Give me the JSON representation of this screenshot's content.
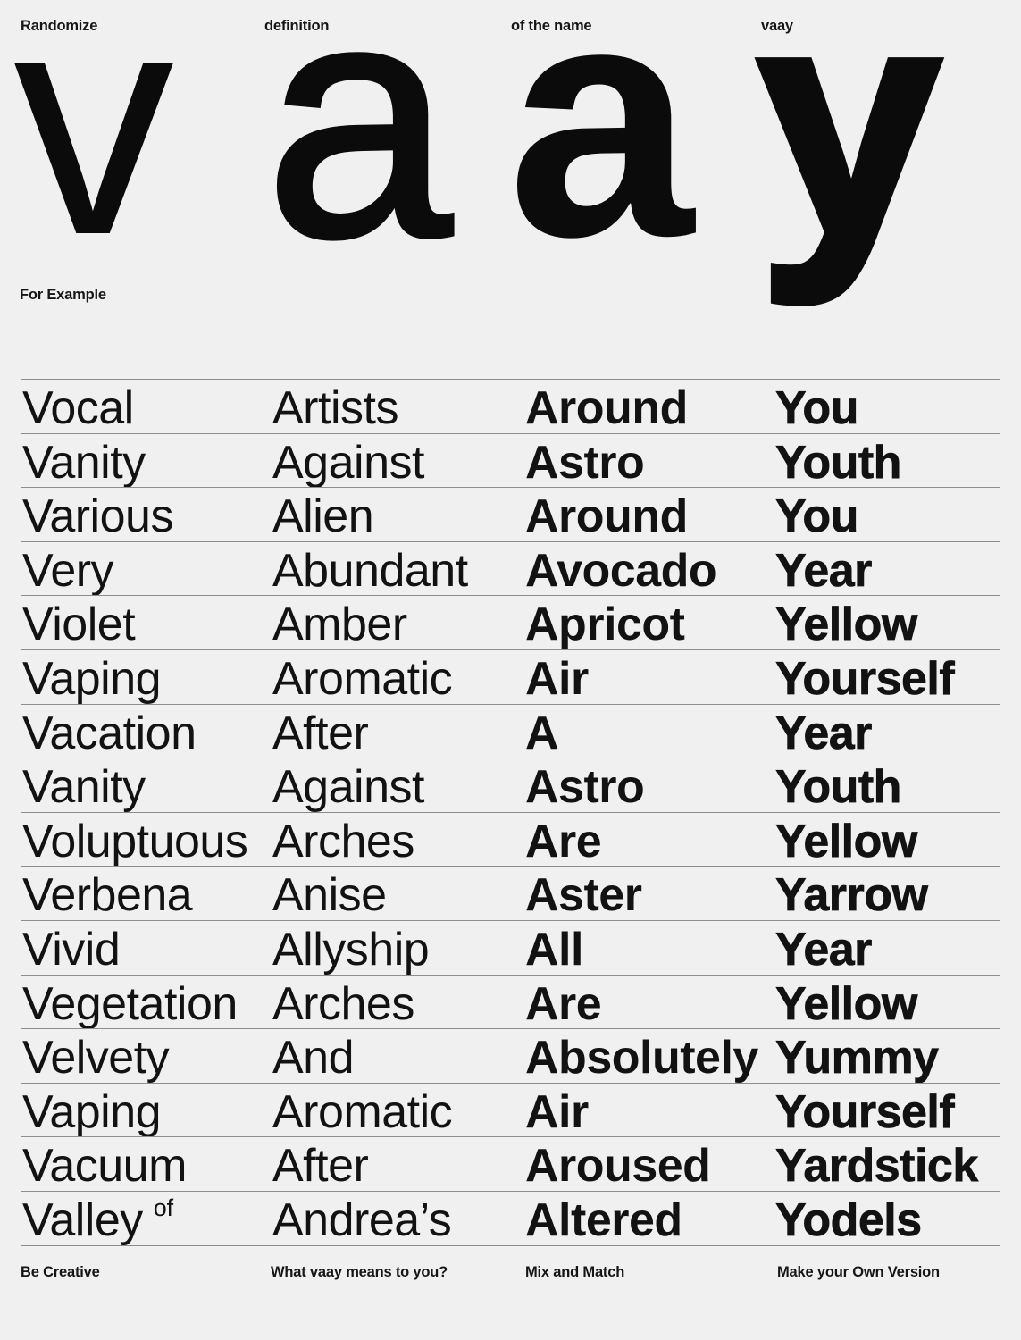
{
  "page": {
    "background_color": "#f0f0f1",
    "text_color": "#131313",
    "divider_color": "#8d8d8d"
  },
  "header": {
    "labels": [
      "Randomize",
      "definition",
      "of the name",
      "vaay"
    ]
  },
  "display": {
    "letters": [
      {
        "char": "v",
        "weight": "light"
      },
      {
        "char": "a",
        "weight": "regular"
      },
      {
        "char": "a",
        "weight": "bold"
      },
      {
        "char": "y",
        "weight": "black"
      }
    ]
  },
  "section_label": "For Example",
  "table": {
    "rows": [
      [
        "Vocal",
        "Artists",
        "Around",
        "You"
      ],
      [
        "Vanity",
        "Against",
        "Astro",
        "Youth"
      ],
      [
        "Various",
        "Alien",
        "Around",
        "You"
      ],
      [
        "Very",
        "Abundant",
        "Avocado",
        "Year"
      ],
      [
        "Violet",
        "Amber",
        "Apricot",
        "Yellow"
      ],
      [
        "Vaping",
        "Aromatic",
        "Air",
        "Yourself"
      ],
      [
        "Vacation",
        "After",
        "A",
        "Year"
      ],
      [
        "Vanity",
        "Against",
        "Astro",
        "Youth"
      ],
      [
        "Voluptuous",
        "Arches",
        "Are",
        "Yellow"
      ],
      [
        "Verbena",
        "Anise",
        "Aster",
        "Yarrow"
      ],
      [
        "Vivid",
        "Allyship",
        "All",
        "Year"
      ],
      [
        "Vegetation",
        "Arches",
        "Are",
        "Yellow"
      ],
      [
        "Velvety",
        "And",
        "Absolutely",
        "Yummy"
      ],
      [
        "Vaping",
        "Aromatic",
        "Air",
        "Yourself"
      ],
      [
        "Vacuum",
        "After",
        "Aroused",
        "Yardstick"
      ],
      [
        "Valley",
        "Andrea’s",
        "Altered",
        "Yodels"
      ]
    ],
    "suffix": {
      "row_index": 15,
      "text": "of"
    }
  },
  "footer": {
    "labels": [
      "Be Creative",
      "What vaay means to you?",
      "Mix and Match",
      "Make your Own Version"
    ]
  }
}
